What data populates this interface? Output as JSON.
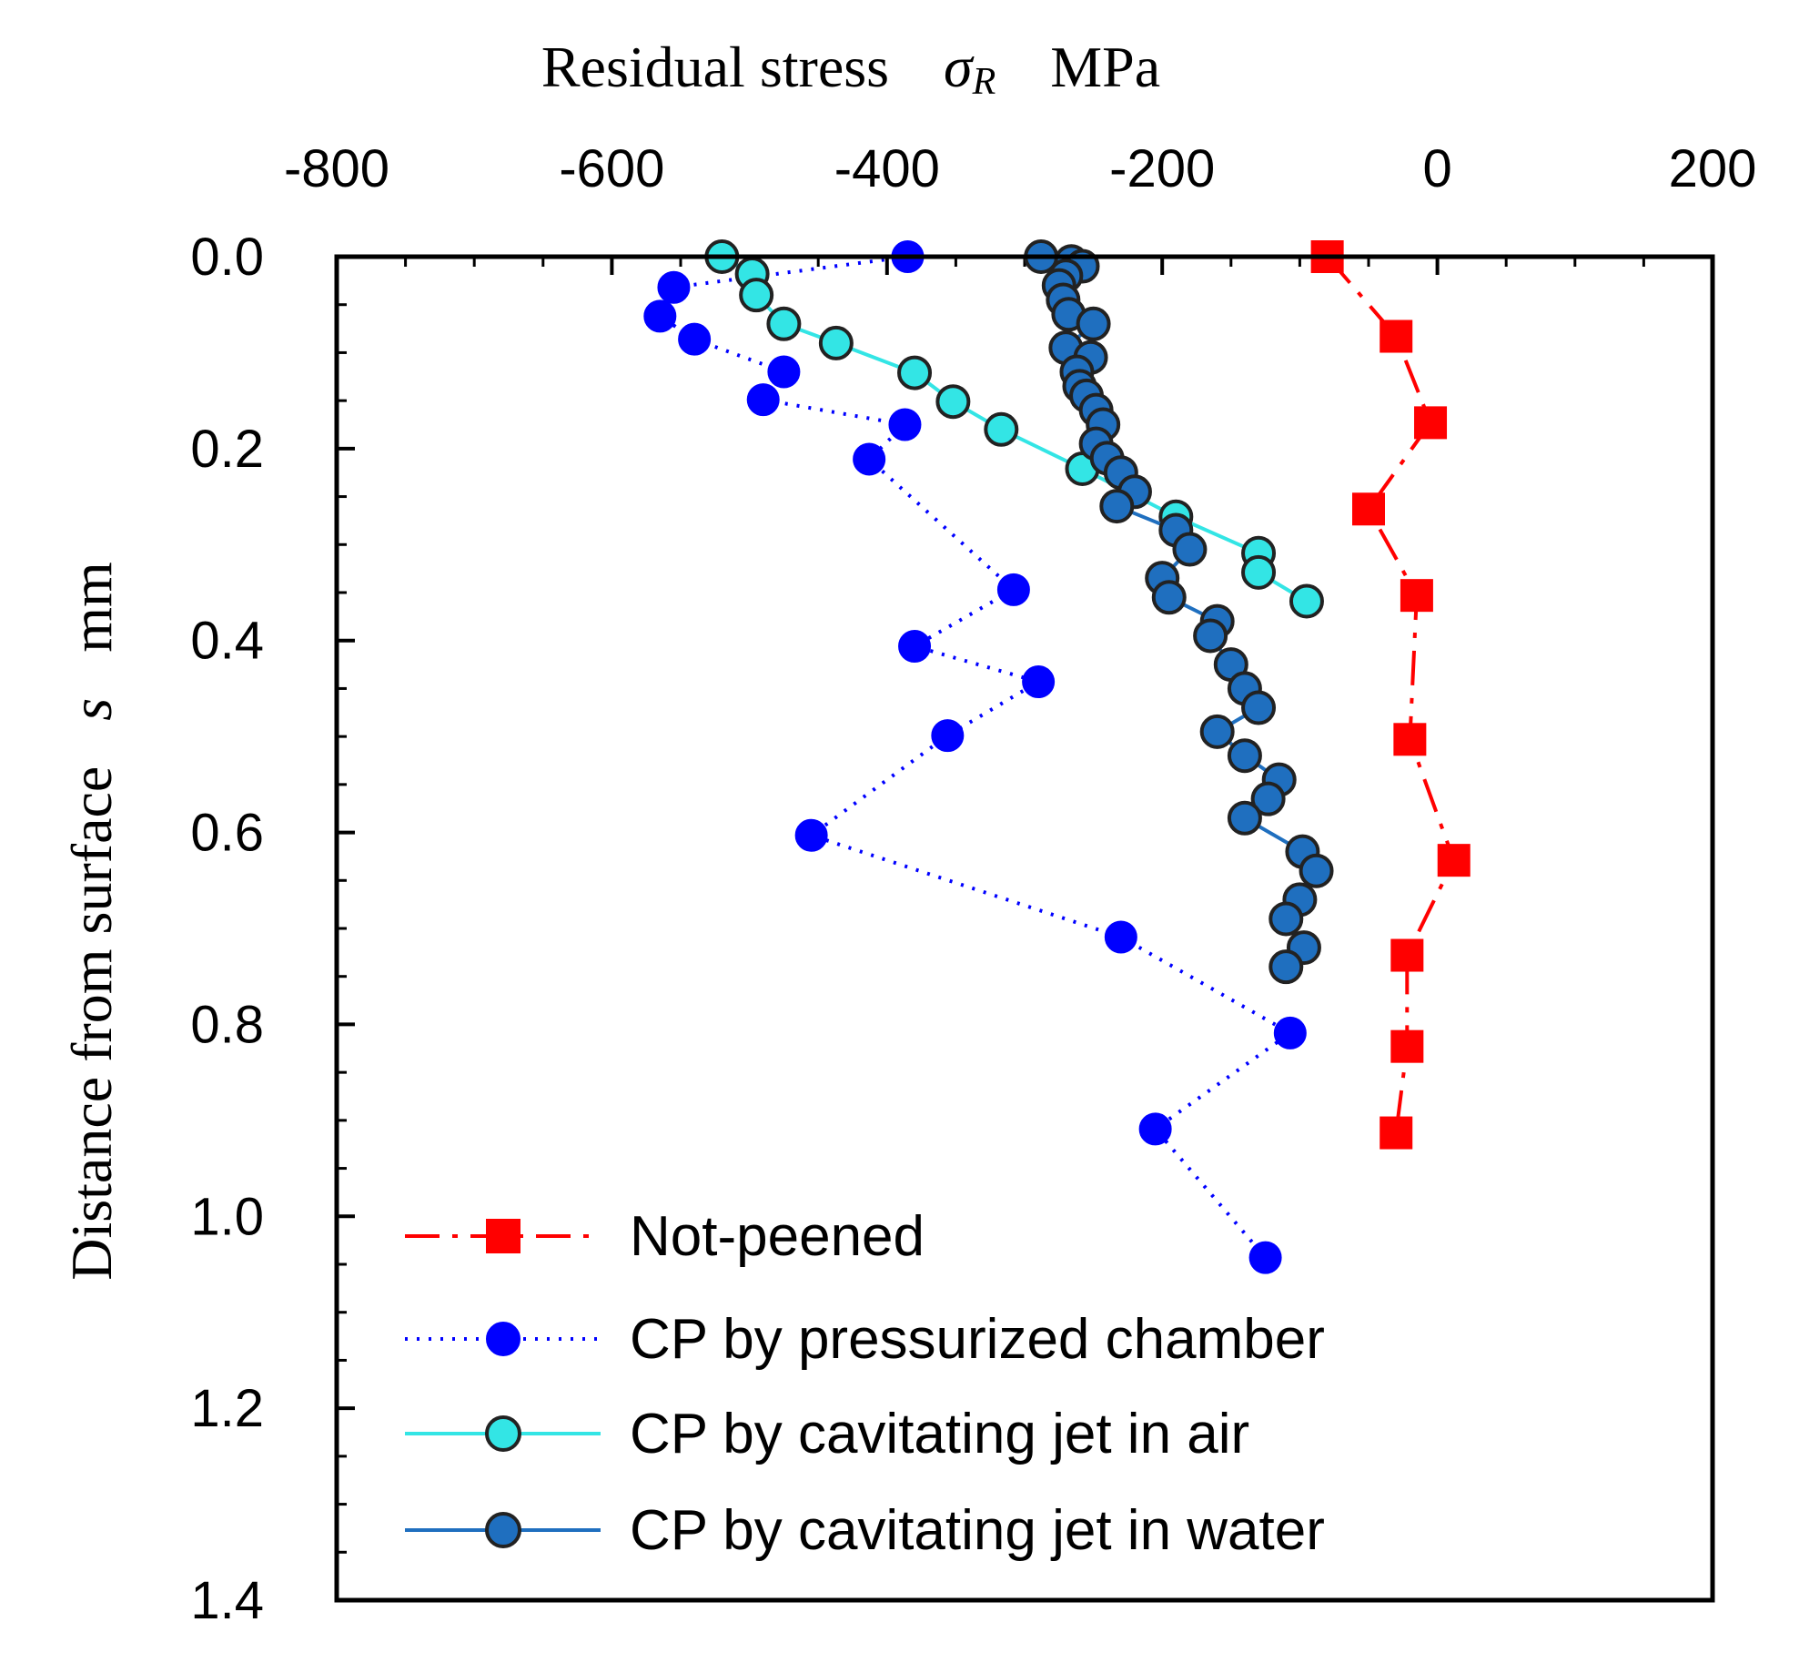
{
  "chart_data": {
    "type": "scatter",
    "title": "",
    "xlabel": {
      "prefix": "Residual stress",
      "symbol": "σ",
      "subscript": "R",
      "unit": "MPa"
    },
    "ylabel": {
      "prefix": "Distance from surface",
      "symbol": "s",
      "unit": "mm"
    },
    "xlim": [
      -800,
      200
    ],
    "ylim": [
      0.0,
      1.4
    ],
    "x_ticks": [
      "-800",
      "-600",
      "-400",
      "-200",
      "0",
      "200"
    ],
    "y_ticks": [
      "0.0",
      "0.2",
      "0.4",
      "0.6",
      "0.8",
      "1.0",
      "1.2",
      "1.4"
    ],
    "x_axis_position": "top",
    "y_axis_inverted": true,
    "grid": false,
    "legend_position": "bottom-left",
    "series": [
      {
        "name": "Not-peened",
        "color": "#ff0000",
        "marker": "square",
        "line": "dashdot",
        "points": [
          [
            -80,
            0.0
          ],
          [
            -30,
            0.083
          ],
          [
            -5,
            0.173
          ],
          [
            -50,
            0.263
          ],
          [
            -15,
            0.353
          ],
          [
            -20,
            0.503
          ],
          [
            12,
            0.629
          ],
          [
            -22,
            0.728
          ],
          [
            -22,
            0.823
          ],
          [
            -30,
            0.913
          ]
        ]
      },
      {
        "name": "CP by pressurized chamber",
        "color": "#0000ff",
        "marker": "circle",
        "line": "dotted",
        "points": [
          [
            -385,
            0.0
          ],
          [
            -555,
            0.032
          ],
          [
            -565,
            0.062
          ],
          [
            -540,
            0.086
          ],
          [
            -475,
            0.12
          ],
          [
            -490,
            0.149
          ],
          [
            -387,
            0.175
          ],
          [
            -413,
            0.211
          ],
          [
            -308,
            0.347
          ],
          [
            -380,
            0.406
          ],
          [
            -290,
            0.443
          ],
          [
            -356,
            0.499
          ],
          [
            -455,
            0.603
          ],
          [
            -230,
            0.709
          ],
          [
            -107,
            0.809
          ],
          [
            -205,
            0.909
          ],
          [
            -125,
            1.043
          ]
        ]
      },
      {
        "name": "CP by cavitating jet in air",
        "color": "#33e5e5",
        "marker": "circle",
        "line": "solid",
        "points": [
          [
            -520,
            0.0
          ],
          [
            -498,
            0.018
          ],
          [
            -495,
            0.04
          ],
          [
            -475,
            0.07
          ],
          [
            -437,
            0.09
          ],
          [
            -380,
            0.121
          ],
          [
            -352,
            0.151
          ],
          [
            -317,
            0.18
          ],
          [
            -258,
            0.221
          ],
          [
            -190,
            0.271
          ],
          [
            -130,
            0.309
          ],
          [
            -130,
            0.329
          ],
          [
            -95,
            0.359
          ]
        ]
      },
      {
        "name": "CP by cavitating jet in water",
        "color": "#1f6fbf",
        "marker": "circle",
        "line": "solid",
        "points": [
          [
            -288,
            0.0
          ],
          [
            -266,
            0.005
          ],
          [
            -258,
            0.01
          ],
          [
            -270,
            0.02
          ],
          [
            -275,
            0.03
          ],
          [
            -272,
            0.045
          ],
          [
            -268,
            0.06
          ],
          [
            -250,
            0.07
          ],
          [
            -270,
            0.095
          ],
          [
            -252,
            0.105
          ],
          [
            -262,
            0.12
          ],
          [
            -260,
            0.135
          ],
          [
            -255,
            0.145
          ],
          [
            -248,
            0.16
          ],
          [
            -243,
            0.175
          ],
          [
            -248,
            0.195
          ],
          [
            -240,
            0.21
          ],
          [
            -230,
            0.225
          ],
          [
            -220,
            0.245
          ],
          [
            -233,
            0.26
          ],
          [
            -190,
            0.285
          ],
          [
            -180,
            0.305
          ],
          [
            -200,
            0.335
          ],
          [
            -195,
            0.355
          ],
          [
            -160,
            0.38
          ],
          [
            -165,
            0.395
          ],
          [
            -150,
            0.425
          ],
          [
            -140,
            0.45
          ],
          [
            -130,
            0.47
          ],
          [
            -160,
            0.495
          ],
          [
            -140,
            0.52
          ],
          [
            -115,
            0.545
          ],
          [
            -123,
            0.565
          ],
          [
            -140,
            0.585
          ],
          [
            -98,
            0.62
          ],
          [
            -88,
            0.64
          ],
          [
            -100,
            0.67
          ],
          [
            -110,
            0.69
          ],
          [
            -97,
            0.72
          ],
          [
            -110,
            0.74
          ]
        ]
      }
    ]
  }
}
